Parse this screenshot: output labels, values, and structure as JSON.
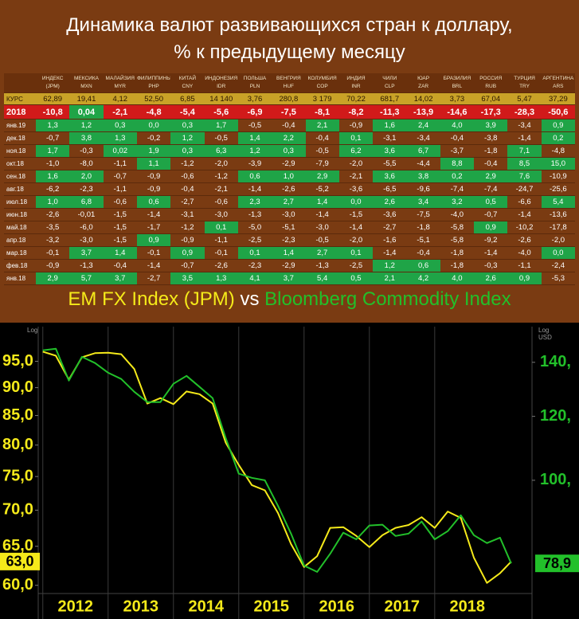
{
  "title": [
    "Динамика валют развивающихся стран к доллару,",
    "% к предыдущему месяцу"
  ],
  "table": {
    "columns": [
      {
        "name": "ИНДЕКС",
        "code": "(JPM)"
      },
      {
        "name": "МЕКСИКА",
        "code": "MXN"
      },
      {
        "name": "МАЛАЙЗИЯ",
        "code": "MYR"
      },
      {
        "name": "ФИЛИППИНЫ",
        "code": "PHP"
      },
      {
        "name": "КИТАЙ",
        "code": "CNY"
      },
      {
        "name": "ИНДОНЕЗИЯ",
        "code": "IDR"
      },
      {
        "name": "ПОЛЬША",
        "code": "PLN"
      },
      {
        "name": "ВЕНГРИЯ",
        "code": "HUF"
      },
      {
        "name": "КОЛУМБИЯ",
        "code": "COP"
      },
      {
        "name": "ИНДИЯ",
        "code": "INR"
      },
      {
        "name": "ЧИЛИ",
        "code": "CLP"
      },
      {
        "name": "ЮАР",
        "code": "ZAR"
      },
      {
        "name": "БРАЗИЛИЯ",
        "code": "BRL"
      },
      {
        "name": "РОССИЯ",
        "code": "RUB"
      },
      {
        "name": "ТУРЦИЯ",
        "code": "TRY"
      },
      {
        "name": "АРГЕНТИНА",
        "code": "ARS"
      }
    ],
    "rows": [
      {
        "label": "КУРС",
        "cells": [
          "62,89",
          "19,41",
          "4,12",
          "52,50",
          "6,85",
          "14 140",
          "3,76",
          "280,8",
          "3 179",
          "70,22",
          "681,7",
          "14,02",
          "3,73",
          "67,04",
          "5,47",
          "37,29"
        ]
      },
      {
        "label": "2018",
        "cells": [
          "-10,8",
          "0,04",
          "-2,1",
          "-4,8",
          "-5,4",
          "-5,6",
          "-6,9",
          "-7,5",
          "-8,1",
          "-8,2",
          "-11,3",
          "-13,9",
          "-14,6",
          "-17,3",
          "-28,3",
          "-50,6"
        ]
      },
      {
        "label": "янв.19",
        "cells": [
          "1,3",
          "1,2",
          "0,3",
          "0,0",
          "0,3",
          "1,7",
          "-0,5",
          "-0,4",
          "2,1",
          "-0,9",
          "1,6",
          "2,4",
          "4,0",
          "3,9",
          "-3,4",
          "0,9"
        ]
      },
      {
        "label": "дек.18",
        "cells": [
          "-0,7",
          "3,8",
          "1,3",
          "-0,2",
          "1,2",
          "-0,5",
          "1,4",
          "2,2",
          "-0,4",
          "0,1",
          "-3,1",
          "-3,4",
          "-0,4",
          "-3,8",
          "-1,4",
          "0,2"
        ]
      },
      {
        "label": "ноя.18",
        "cells": [
          "1,7",
          "-0,3",
          "0,02",
          "1,9",
          "0,3",
          "6,3",
          "1,2",
          "0,3",
          "-0,5",
          "6,2",
          "3,6",
          "6,7",
          "-3,7",
          "-1,8",
          "7,1",
          "-4,8"
        ]
      },
      {
        "label": "окт.18",
        "cells": [
          "-1,0",
          "-8,0",
          "-1,1",
          "1,1",
          "-1,2",
          "-2,0",
          "-3,9",
          "-2,9",
          "-7,9",
          "-2,0",
          "-5,5",
          "-4,4",
          "8,8",
          "-0,4",
          "8,5",
          "15,0"
        ]
      },
      {
        "label": "сен.18",
        "cells": [
          "1,6",
          "2,0",
          "-0,7",
          "-0,9",
          "-0,6",
          "-1,2",
          "0,6",
          "1,0",
          "2,9",
          "-2,1",
          "3,6",
          "3,8",
          "0,2",
          "2,9",
          "7,6",
          "-10,9"
        ]
      },
      {
        "label": "авг.18",
        "cells": [
          "-6,2",
          "-2,3",
          "-1,1",
          "-0,9",
          "-0,4",
          "-2,1",
          "-1,4",
          "-2,6",
          "-5,2",
          "-3,6",
          "-6,5",
          "-9,6",
          "-7,4",
          "-7,4",
          "-24,7",
          "-25,6"
        ]
      },
      {
        "label": "июл.18",
        "cells": [
          "1,0",
          "6,8",
          "-0,6",
          "0,6",
          "-2,7",
          "-0,6",
          "2,3",
          "2,7",
          "1,4",
          "0,0",
          "2,6",
          "3,4",
          "3,2",
          "0,5",
          "-6,6",
          "5,4"
        ]
      },
      {
        "label": "июн.18",
        "cells": [
          "-2,6",
          "-0,01",
          "-1,5",
          "-1,4",
          "-3,1",
          "-3,0",
          "-1,3",
          "-3,0",
          "-1,4",
          "-1,5",
          "-3,6",
          "-7,5",
          "-4,0",
          "-0,7",
          "-1,4",
          "-13,6"
        ]
      },
      {
        "label": "май.18",
        "cells": [
          "-3,5",
          "-6,0",
          "-1,5",
          "-1,7",
          "-1,2",
          "0,1",
          "-5,0",
          "-5,1",
          "-3,0",
          "-1,4",
          "-2,7",
          "-1,8",
          "-5,8",
          "0,9",
          "-10,2",
          "-17,8"
        ]
      },
      {
        "label": "апр.18",
        "cells": [
          "-3,2",
          "-3,0",
          "-1,5",
          "0,9",
          "-0,9",
          "-1,1",
          "-2,5",
          "-2,3",
          "-0,5",
          "-2,0",
          "-1,6",
          "-5,1",
          "-5,8",
          "-9,2",
          "-2,6",
          "-2,0"
        ]
      },
      {
        "label": "мар.18",
        "cells": [
          "-0,1",
          "3,7",
          "1,4",
          "-0,1",
          "0,9",
          "-0,1",
          "0,1",
          "1,4",
          "2,7",
          "0,1",
          "-1,4",
          "-0,4",
          "-1,8",
          "-1,4",
          "-4,0",
          "0,0"
        ]
      },
      {
        "label": "фев.18",
        "cells": [
          "-0,9",
          "-1,3",
          "-0,4",
          "-1,4",
          "-0,7",
          "-2,6",
          "-2,3",
          "-2,9",
          "-1,3",
          "-2,5",
          "1,2",
          "0,6",
          "-1,8",
          "-0,3",
          "-1,1",
          "-2,4"
        ]
      },
      {
        "label": "янв.18",
        "cells": [
          "2,9",
          "5,7",
          "3,7",
          "-2,7",
          "3,5",
          "1,3",
          "4,1",
          "3,7",
          "5,4",
          "0,5",
          "2,1",
          "4,2",
          "4,0",
          "2,6",
          "0,9",
          "-5,3"
        ]
      }
    ]
  },
  "chart_data": {
    "type": "line",
    "legend_joiner": "vs",
    "y_label": "Log",
    "y2_label": [
      "Log",
      "USD"
    ],
    "log_scale": true,
    "x_grid": true,
    "x": [
      2012.0,
      2012.2,
      2012.4,
      2012.6,
      2012.8,
      2013.0,
      2013.2,
      2013.4,
      2013.6,
      2013.8,
      2014.0,
      2014.2,
      2014.4,
      2014.6,
      2014.8,
      2015.0,
      2015.2,
      2015.4,
      2015.6,
      2015.8,
      2016.0,
      2016.2,
      2016.4,
      2016.6,
      2016.8,
      2017.0,
      2017.2,
      2017.4,
      2017.6,
      2017.8,
      2018.0,
      2018.2,
      2018.4,
      2018.6,
      2018.8,
      2019.0,
      2019.17
    ],
    "xlim": [
      2011.93,
      2019.49
    ],
    "xticks": [
      2012,
      2013,
      2014,
      2015,
      2016,
      2017,
      2018
    ],
    "ylim": [
      59,
      102
    ],
    "yticks": [
      {
        "value": 60,
        "label": "60,0"
      },
      {
        "value": 65,
        "label": "65,0"
      },
      {
        "value": 70,
        "label": "70,0"
      },
      {
        "value": 75,
        "label": "75,0"
      },
      {
        "value": 80,
        "label": "80,0"
      },
      {
        "value": 85,
        "label": "85,0"
      },
      {
        "value": 90,
        "label": "90,0"
      },
      {
        "value": 95,
        "label": "95,0"
      }
    ],
    "y2lim": [
      72.4,
      155
    ],
    "y2ticks": [
      {
        "value": 100,
        "label": "100,"
      },
      {
        "value": 120,
        "label": "120,"
      },
      {
        "value": 140,
        "label": "140,"
      }
    ],
    "series": [
      {
        "name": "EM FX Index (JPM)",
        "color": "#f5ea1a",
        "end_label": "63,0",
        "values": [
          96.9,
          96.1,
          91.5,
          95.8,
          96.6,
          96.7,
          96.4,
          93.5,
          87.1,
          88.1,
          87.0,
          89.3,
          88.8,
          87.1,
          80.4,
          76.8,
          73.7,
          72.9,
          69.6,
          65.3,
          62.3,
          63.7,
          67.5,
          67.6,
          66.4,
          64.9,
          66.5,
          67.5,
          67.9,
          69.0,
          67.5,
          69.8,
          68.9,
          63.5,
          60.3,
          61.5,
          63.0
        ]
      },
      {
        "name": "Bloomberg Commodity Index",
        "color": "#22c02a",
        "axis": "y2",
        "end_label": "78,9",
        "values": [
          144.9,
          145.5,
          132.9,
          142.2,
          139.7,
          135.9,
          133.5,
          128.7,
          125.0,
          125.0,
          131.7,
          134.7,
          130.5,
          126.4,
          112.8,
          101.9,
          100.7,
          100.0,
          93.0,
          85.9,
          78.4,
          77.0,
          81.1,
          86.1,
          84.5,
          87.9,
          88.1,
          85.3,
          85.9,
          88.9,
          84.5,
          86.5,
          90.5,
          85.5,
          83.6,
          84.9,
          78.9
        ]
      }
    ]
  }
}
